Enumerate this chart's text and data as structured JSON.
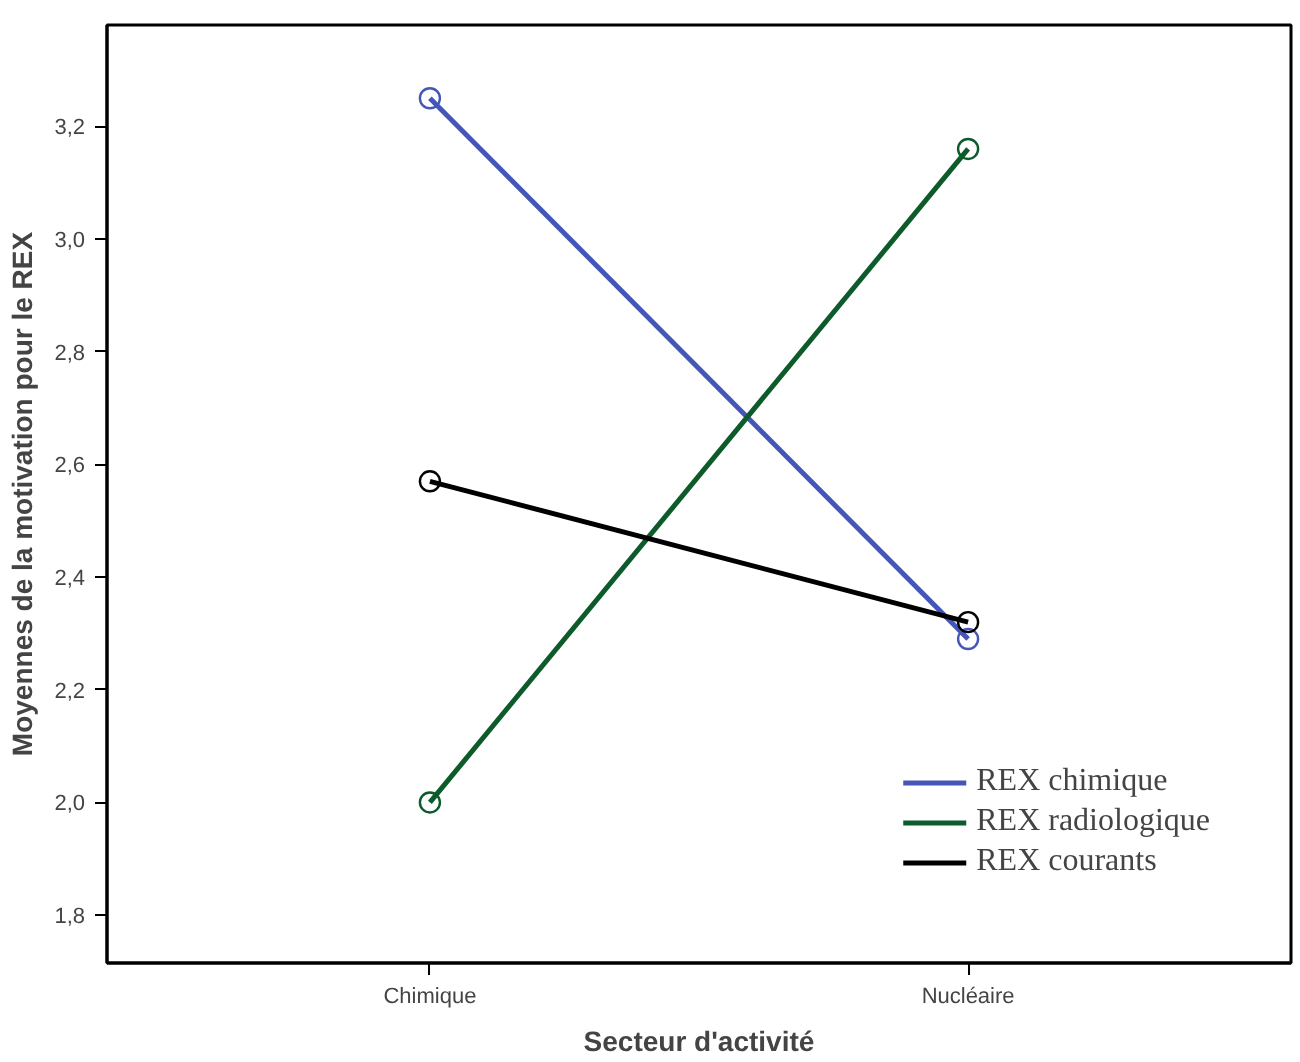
{
  "chart_data": {
    "type": "line",
    "xlabel": "Secteur d'activité",
    "ylabel": "Moyennes de la motivation pour le REX",
    "categories": [
      "Chimique",
      "Nucléaire"
    ],
    "series": [
      {
        "name": "REX chimique",
        "color": "#4457b8",
        "values": [
          3.25,
          2.29
        ]
      },
      {
        "name": "REX radiologique",
        "color": "#0d5a2a",
        "values": [
          2.0,
          3.16
        ]
      },
      {
        "name": "REX courants",
        "color": "#000000",
        "values": [
          2.57,
          2.32
        ]
      }
    ],
    "ylim": [
      1.715,
      3.38
    ],
    "yticks": [
      {
        "value": 1.8,
        "label": "1,8"
      },
      {
        "value": 2.0,
        "label": "2,0"
      },
      {
        "value": 2.2,
        "label": "2,2"
      },
      {
        "value": 2.4,
        "label": "2,4"
      },
      {
        "value": 2.6,
        "label": "2,6"
      },
      {
        "value": 2.8,
        "label": "2,8"
      },
      {
        "value": 3.0,
        "label": "3,0"
      },
      {
        "value": 3.2,
        "label": "3,2"
      }
    ],
    "grid": false,
    "legend": "bottom right",
    "marker": "circle"
  }
}
